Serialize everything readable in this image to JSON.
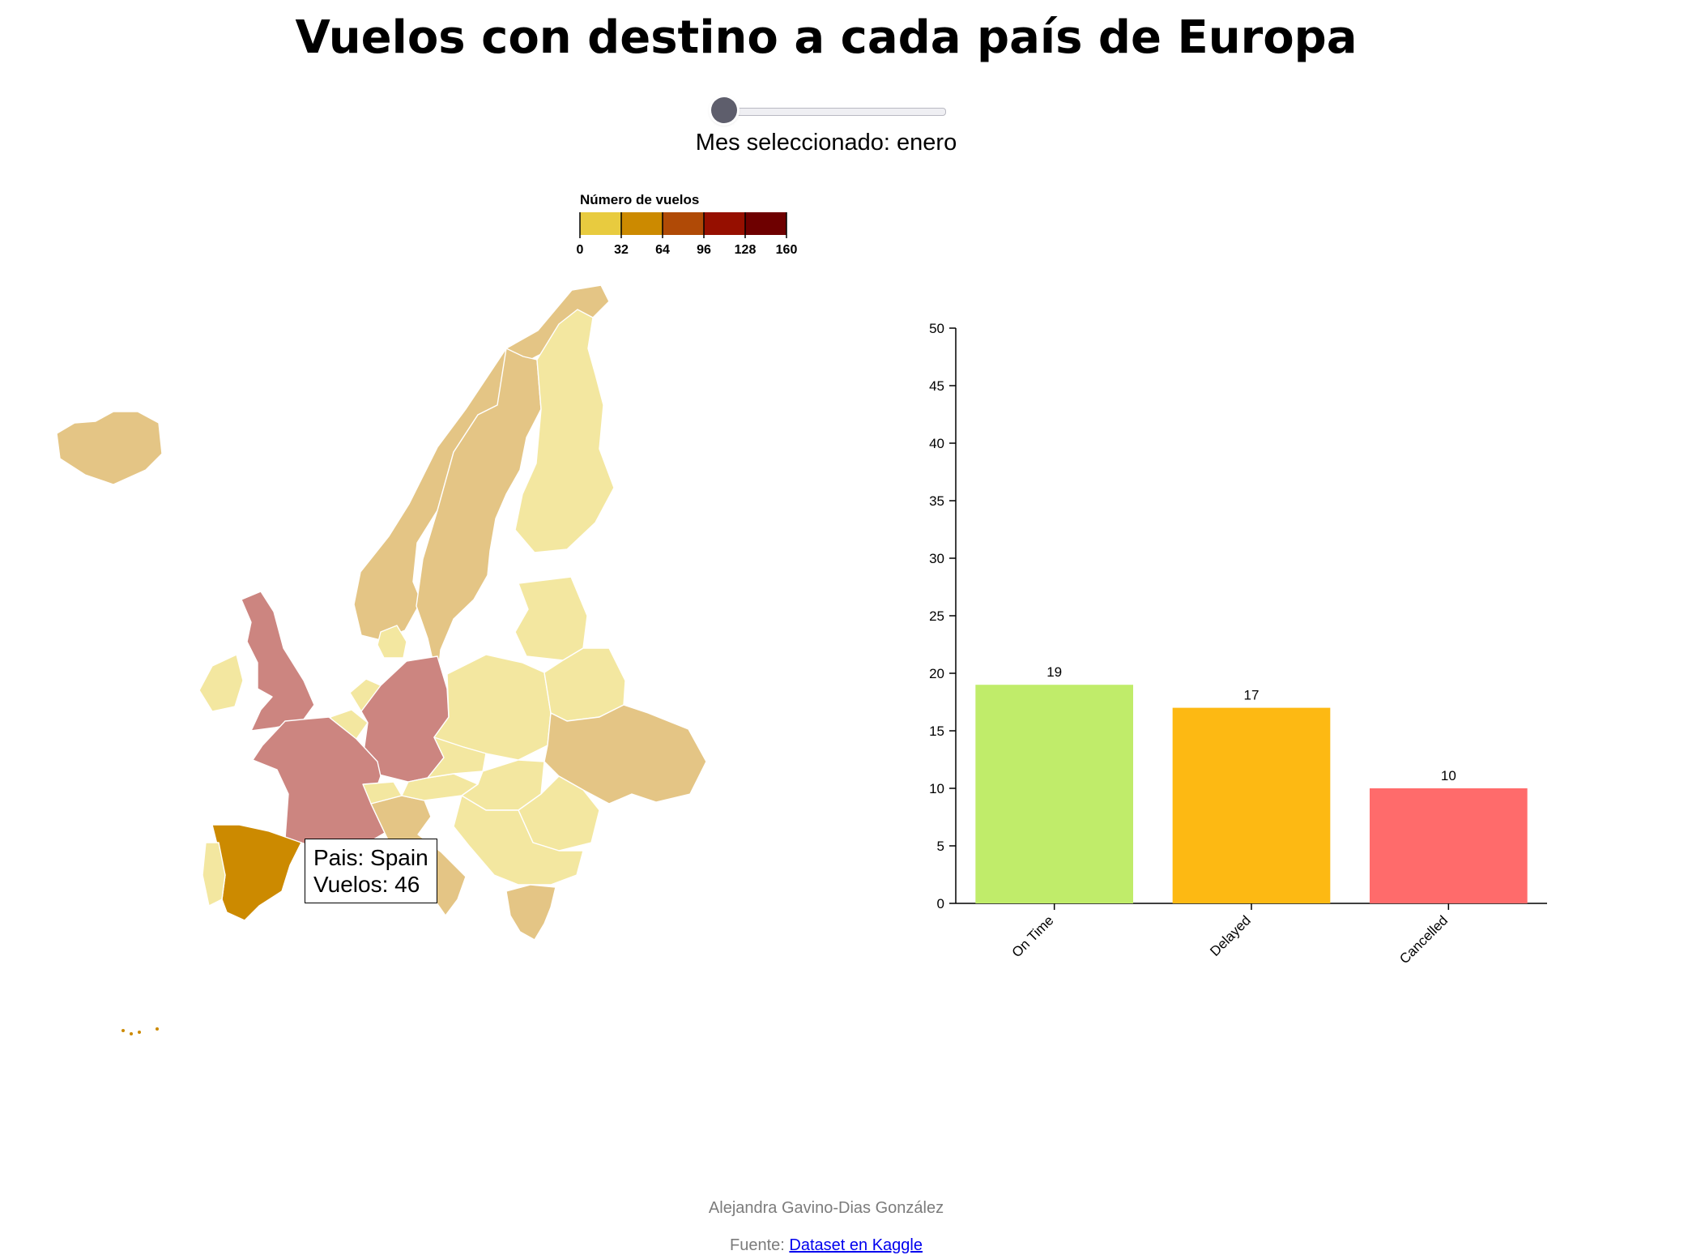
{
  "title": "Vuelos con destino a cada país de Europa",
  "slider": {
    "label": "Mes seleccionado: enero",
    "value": 0,
    "min": 0,
    "max": 11
  },
  "legend": {
    "title": "Número de vuelos",
    "ticks": [
      "0",
      "32",
      "64",
      "96",
      "128",
      "160"
    ],
    "colors": [
      "#e8cb3f",
      "#cc8a00",
      "#b04a06",
      "#960f00",
      "#6e0000"
    ]
  },
  "map_colors": {
    "light": "#f3e7a0",
    "medium": "#e4c585",
    "high": "#cc8580",
    "selected": "#cc8a00",
    "border": "#ffffff"
  },
  "tooltip": {
    "country_line": "Pais: Spain",
    "flights_line": "Vuelos: 46"
  },
  "chart_data": {
    "type": "bar",
    "categories": [
      "On Time",
      "Delayed",
      "Cancelled"
    ],
    "values": [
      19,
      17,
      10
    ],
    "colors": [
      "#c0ec6a",
      "#fdb913",
      "#ff6b6b"
    ],
    "ylim": [
      0,
      50
    ],
    "yticks": [
      0,
      5,
      10,
      15,
      20,
      25,
      30,
      35,
      40,
      45,
      50
    ],
    "title": "",
    "xlabel": "",
    "ylabel": ""
  },
  "footer": {
    "author": "Alejandra Gavino-Dias González",
    "source_prefix": "Fuente:",
    "source_link": "Dataset en Kaggle"
  }
}
